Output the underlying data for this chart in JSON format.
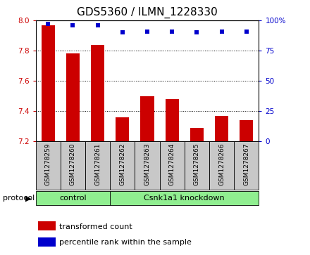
{
  "title": "GDS5360 / ILMN_1228330",
  "samples": [
    "GSM1278259",
    "GSM1278260",
    "GSM1278261",
    "GSM1278262",
    "GSM1278263",
    "GSM1278264",
    "GSM1278265",
    "GSM1278266",
    "GSM1278267"
  ],
  "bar_values": [
    7.97,
    7.78,
    7.84,
    7.36,
    7.5,
    7.48,
    7.29,
    7.37,
    7.34
  ],
  "percentile_values": [
    97,
    96,
    96,
    90,
    91,
    91,
    90,
    91,
    91
  ],
  "ylim_left": [
    7.2,
    8.0
  ],
  "ylim_right": [
    0,
    100
  ],
  "yticks_left": [
    7.2,
    7.4,
    7.6,
    7.8,
    8.0
  ],
  "yticks_right": [
    0,
    25,
    50,
    75,
    100
  ],
  "bar_color": "#cc0000",
  "dot_color": "#0000cc",
  "bar_width": 0.55,
  "n_ctrl": 3,
  "n_kd": 6,
  "control_label": "control",
  "knockdown_label": "Csnk1a1 knockdown",
  "protocol_label": "protocol",
  "legend_bar_label": "transformed count",
  "legend_dot_label": "percentile rank within the sample",
  "group_bg_color": "#c8c8c8",
  "protocol_bg_color": "#90ee90",
  "title_fontsize": 11,
  "tick_fontsize": 7.5,
  "sample_fontsize": 6.5,
  "proto_fontsize": 8,
  "legend_fontsize": 8
}
